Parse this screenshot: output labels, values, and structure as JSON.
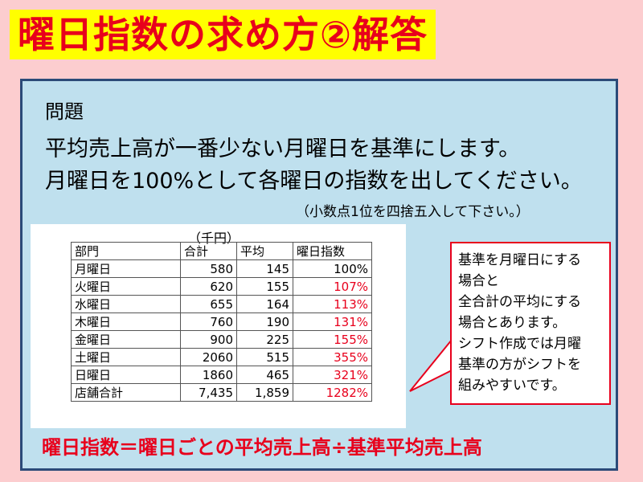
{
  "title": "曜日指数の求め方②解答",
  "problem": {
    "heading": "問題",
    "line1": "平均売上高が一番少ない月曜日を基準にします。",
    "line2": "月曜日を100%として各曜日の指数を出してください。",
    "note": "（小数点1位を四捨五入して下さい。）"
  },
  "table": {
    "unit": "（千円）",
    "headers": [
      "部門",
      "合計",
      "平均",
      "曜日指数"
    ],
    "rows": [
      {
        "dept": "月曜日",
        "total": "580",
        "avg": "145",
        "index": "100%"
      },
      {
        "dept": "火曜日",
        "total": "620",
        "avg": "155",
        "index": "107%"
      },
      {
        "dept": "水曜日",
        "total": "655",
        "avg": "164",
        "index": "113%"
      },
      {
        "dept": "木曜日",
        "total": "760",
        "avg": "190",
        "index": "131%"
      },
      {
        "dept": "金曜日",
        "total": "900",
        "avg": "225",
        "index": "155%"
      },
      {
        "dept": "土曜日",
        "total": "2060",
        "avg": "515",
        "index": "355%"
      },
      {
        "dept": "日曜日",
        "total": "1860",
        "avg": "465",
        "index": "321%"
      },
      {
        "dept": "店舗合計",
        "total": "7,435",
        "avg": "1,859",
        "index": "1282%"
      }
    ]
  },
  "callout": {
    "lines": [
      "基準を月曜日にする",
      "場合と",
      "全合計の平均にする",
      "場合とあります。",
      "シフト作成では月曜",
      "基準の方がシフトを",
      "組みやすいです。"
    ]
  },
  "formula": "曜日指数＝曜日ごとの平均売上高÷基準平均売上高",
  "colors": {
    "background": "#fccdcf",
    "title_highlight": "#ffff00",
    "accent_red": "#e8001c",
    "panel": "#bfe0ee",
    "panel_border": "#2b4a78"
  }
}
